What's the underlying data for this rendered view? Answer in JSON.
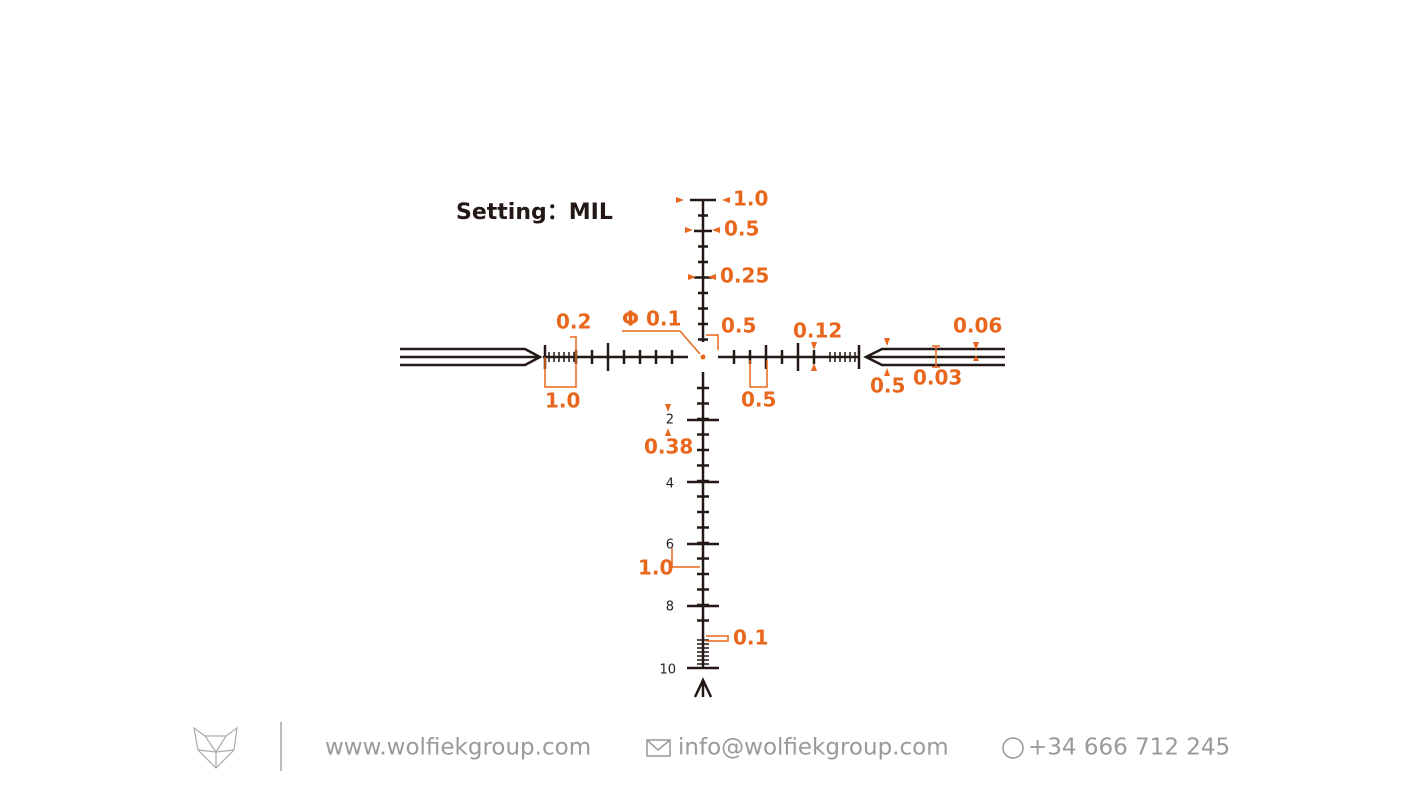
{
  "setting": "Setting：MIL",
  "annotations": [
    "1.0",
    "0.5",
    "0.25",
    "Φ 0.1",
    "0.5",
    "0.12",
    "0.06",
    "0.2",
    "1.0",
    "0.5",
    "0.5",
    "0.03",
    "0.38",
    "1.0",
    "0.1"
  ],
  "scale_labels": [
    "2",
    "4",
    "6",
    "8",
    "10"
  ],
  "footer": {
    "website": "www.wolfiekgroup.com",
    "email": "info@wolfiekgroup.com",
    "phone": "+34 666 712 245"
  }
}
